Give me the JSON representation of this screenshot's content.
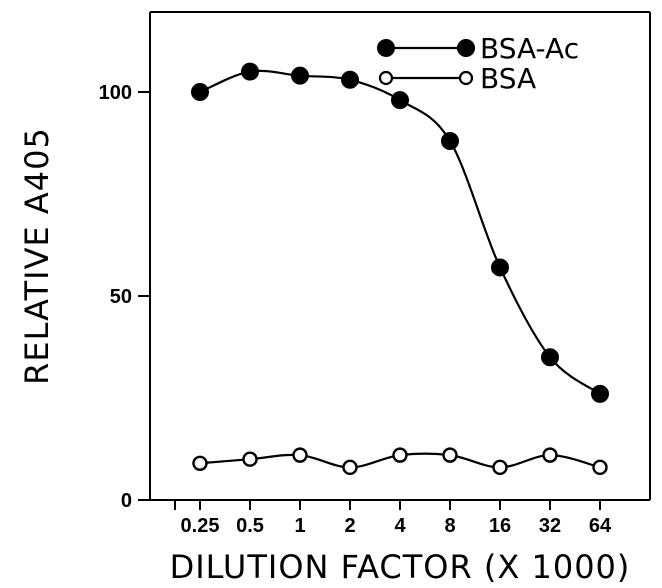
{
  "chart_data": {
    "type": "line",
    "xlabel": "DILUTION FACTOR (X 1000)",
    "ylabel": "RELATIVE A405",
    "x_tick_labels": [
      "0.25",
      "0.5",
      "1",
      "2",
      "4",
      "8",
      "16",
      "32",
      "64"
    ],
    "y_ticks": [
      0,
      50,
      100
    ],
    "ylim": [
      0,
      118
    ],
    "x_scale": "log2",
    "grid": false,
    "legend_position": "top-right",
    "series": [
      {
        "name": "BSA-Ac",
        "marker": "filled-circle",
        "color": "#000000",
        "x": [
          0.25,
          0.5,
          1,
          2,
          4,
          8,
          16,
          32,
          64
        ],
        "values": [
          100,
          105,
          104,
          103,
          98,
          88,
          57,
          35,
          26
        ]
      },
      {
        "name": "BSA",
        "marker": "open-circle",
        "color": "#000000",
        "x": [
          0.25,
          0.5,
          1,
          2,
          4,
          8,
          16,
          32,
          64
        ],
        "values": [
          9,
          10,
          11,
          8,
          11,
          11,
          8,
          11,
          8
        ]
      }
    ]
  }
}
